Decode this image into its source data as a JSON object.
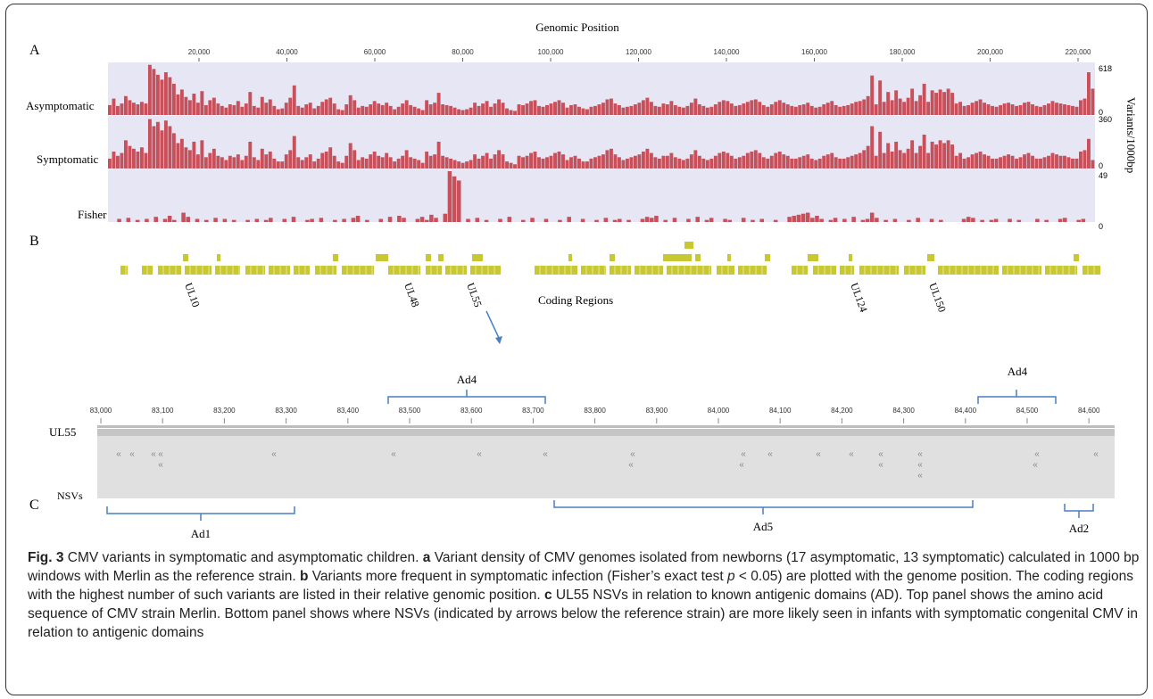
{
  "panels": {
    "A": "A",
    "B": "B",
    "C": "C"
  },
  "panelA": {
    "top_axis_label": "Genomic Position",
    "right_axis_label": "Variants/1000bp",
    "top_ticks": [
      "20,000",
      "40,000",
      "60,000",
      "80,000",
      "100,000",
      "120,000",
      "140,000",
      "160,000",
      "180,000",
      "200,000",
      "220,000"
    ],
    "tracks": [
      {
        "name": "Asymptomatic",
        "max_label": "618",
        "min_label": "0"
      },
      {
        "name": "Symptomatic",
        "max_label": "360",
        "min_label": "0"
      },
      {
        "name": "Fisher",
        "max_label": "49",
        "min_label": "0"
      }
    ]
  },
  "panelB": {
    "label": "Coding Regions",
    "genes": [
      "UL10",
      "UL48",
      "UL55",
      "UL124",
      "UL150"
    ]
  },
  "panelC": {
    "ticks": [
      "83,000",
      "83,100",
      "83,200",
      "83,300",
      "83,400",
      "83,500",
      "83,600",
      "83,700",
      "83,800",
      "83,900",
      "84,000",
      "84,100",
      "84,200",
      "84,300",
      "84,400",
      "84,500",
      "84,600"
    ],
    "row_labels": {
      "gene": "UL55",
      "nsv": "NSVs"
    },
    "domains_top": [
      "Ad4",
      "Ad4"
    ],
    "domains_bottom": [
      "Ad1",
      "Ad5",
      "Ad2"
    ]
  },
  "caption": {
    "fig_label": "Fig. 3",
    "title": " CMV variants in symptomatic and asymptomatic children. ",
    "a_label": "a",
    "a_text": " Variant density of CMV genomes isolated from newborns (17 asymptomatic, 13 symptomatic) calculated in 1000 bp windows with Merlin as the reference strain. ",
    "b_label": "b",
    "b_text1": " Variants more frequent in symptomatic infection (Fisher’s exact test ",
    "b_p": "p",
    "b_text2": " < 0.05) are plotted with the genome position. The coding regions with the highest number of such variants are listed in their relative genomic position. ",
    "c_label": "c",
    "c_text": " UL55 NSVs in relation to known antigenic domains (AD). Top panel shows the amino acid sequence of CMV strain Merlin. Bottom panel shows where NSVs (indicated by arrows below the reference strain) are more likely seen in infants with symptomatic congenital CMV in relation to antigenic domains"
  },
  "chart_data": [
    {
      "type": "bar",
      "series": [
        {
          "name": "Asymptomatic",
          "values": [
            120,
            200,
            110,
            140,
            230,
            180,
            150,
            130,
            160,
            140,
            610,
            560,
            490,
            430,
            520,
            460,
            380,
            250,
            310,
            220,
            180,
            260,
            150,
            290,
            120,
            180,
            210,
            140,
            110,
            90,
            130,
            120,
            170,
            100,
            140,
            280,
            110,
            90,
            220,
            150,
            190,
            110,
            70,
            80,
            150,
            210,
            360,
            110,
            90,
            130,
            150,
            80,
            110,
            160,
            190,
            210,
            140,
            70,
            60,
            130,
            240,
            180,
            90,
            110,
            100,
            130,
            170,
            140,
            120,
            150,
            110,
            70,
            100,
            140,
            180,
            120,
            100,
            80,
            60,
            180,
            130,
            150,
            270,
            130,
            120,
            110,
            90,
            70,
            60,
            70,
            90,
            150,
            110,
            140,
            170,
            100,
            140,
            190,
            150,
            80,
            60,
            50,
            130,
            120,
            140,
            170,
            180,
            110,
            100,
            120,
            140,
            160,
            180,
            150,
            90,
            120,
            130,
            100,
            80,
            70,
            100,
            110,
            130,
            150,
            190,
            200,
            140,
            120,
            90,
            100,
            110,
            130,
            150,
            180,
            210,
            160,
            110,
            100,
            140,
            130,
            170,
            120,
            100,
            90,
            110,
            150,
            200,
            130,
            110,
            90,
            100,
            130,
            160,
            180,
            170,
            140,
            110,
            120,
            140,
            160,
            180,
            190,
            160,
            120,
            100,
            130,
            160,
            180,
            150,
            130,
            110,
            100,
            120,
            130,
            150,
            110,
            90,
            100,
            130,
            150,
            170,
            120,
            100,
            110,
            120,
            140,
            160,
            170,
            190,
            230,
            480,
            130,
            420,
            160,
            280,
            180,
            300,
            200,
            160,
            210,
            320,
            170,
            240,
            380,
            160,
            300,
            270,
            310,
            280,
            320,
            270,
            140,
            160,
            110,
            120,
            150,
            170,
            190,
            150,
            130,
            110,
            100,
            120,
            140,
            150,
            130,
            110,
            120,
            150,
            160,
            130,
            110,
            100,
            120,
            140,
            170,
            150,
            140,
            130,
            120,
            110,
            100,
            180,
            200,
            520,
            320
          ]
        },
        {
          "name": "Symptomatic",
          "values": [
            70,
            120,
            90,
            110,
            200,
            160,
            140,
            120,
            150,
            110,
            350,
            300,
            330,
            270,
            340,
            300,
            250,
            180,
            210,
            150,
            130,
            190,
            100,
            200,
            80,
            110,
            140,
            90,
            80,
            60,
            90,
            80,
            100,
            60,
            90,
            190,
            80,
            60,
            140,
            100,
            120,
            70,
            50,
            50,
            100,
            130,
            230,
            80,
            60,
            80,
            100,
            50,
            70,
            110,
            120,
            150,
            90,
            50,
            40,
            90,
            180,
            130,
            60,
            80,
            70,
            100,
            120,
            90,
            80,
            110,
            80,
            50,
            70,
            90,
            130,
            80,
            70,
            60,
            40,
            120,
            90,
            100,
            190,
            90,
            80,
            70,
            60,
            50,
            40,
            50,
            60,
            100,
            70,
            90,
            110,
            70,
            100,
            130,
            100,
            50,
            40,
            30,
            90,
            80,
            90,
            110,
            120,
            80,
            70,
            80,
            90,
            110,
            120,
            100,
            60,
            80,
            90,
            70,
            50,
            50,
            70,
            80,
            90,
            100,
            130,
            140,
            100,
            80,
            60,
            70,
            80,
            90,
            100,
            120,
            140,
            110,
            80,
            70,
            90,
            90,
            110,
            80,
            70,
            60,
            70,
            100,
            130,
            90,
            70,
            60,
            70,
            90,
            110,
            120,
            110,
            90,
            70,
            80,
            90,
            110,
            120,
            130,
            110,
            80,
            70,
            90,
            110,
            120,
            100,
            90,
            70,
            70,
            80,
            90,
            100,
            70,
            60,
            70,
            90,
            100,
            110,
            80,
            70,
            70,
            80,
            90,
            100,
            110,
            130,
            160,
            300,
            90,
            260,
            110,
            180,
            120,
            190,
            130,
            110,
            140,
            200,
            110,
            160,
            240,
            110,
            190,
            170,
            200,
            180,
            200,
            170,
            90,
            110,
            70,
            80,
            100,
            110,
            120,
            100,
            90,
            70,
            70,
            80,
            90,
            100,
            90,
            70,
            80,
            100,
            110,
            90,
            70,
            70,
            80,
            90,
            110,
            100,
            90,
            90,
            80,
            70,
            70,
            120,
            130,
            210,
            60
          ]
        },
        {
          "name": "Fisher",
          "values": [
            0,
            0,
            3,
            0,
            4,
            0,
            2,
            0,
            3,
            0,
            5,
            0,
            3,
            6,
            2,
            0,
            9,
            5,
            0,
            3,
            0,
            2,
            0,
            4,
            0,
            3,
            0,
            2,
            0,
            0,
            2,
            0,
            3,
            0,
            2,
            4,
            0,
            0,
            3,
            0,
            5,
            0,
            0,
            2,
            3,
            0,
            4,
            0,
            0,
            2,
            0,
            3,
            0,
            4,
            6,
            0,
            2,
            0,
            0,
            3,
            0,
            5,
            0,
            6,
            4,
            0,
            0,
            3,
            5,
            2,
            7,
            4,
            0,
            8,
            49,
            44,
            40,
            0,
            3,
            0,
            4,
            0,
            2,
            0,
            0,
            3,
            0,
            5,
            0,
            0,
            2,
            0,
            4,
            0,
            0,
            3,
            0,
            0,
            2,
            0,
            5,
            0,
            0,
            3,
            0,
            0,
            2,
            0,
            4,
            0,
            2,
            3,
            0,
            2,
            0,
            0,
            3,
            5,
            4,
            6,
            0,
            2,
            0,
            4,
            0,
            0,
            3,
            0,
            5,
            0,
            2,
            4,
            0,
            0,
            3,
            2,
            0,
            0,
            4,
            0,
            2,
            0,
            3,
            0,
            0,
            2,
            0,
            0,
            5,
            6,
            7,
            8,
            9,
            4,
            6,
            3,
            0,
            2,
            4,
            0,
            3,
            0,
            5,
            0,
            2,
            3,
            9,
            4,
            0,
            2,
            0,
            3,
            0,
            0,
            2,
            0,
            4,
            0,
            0,
            3,
            0,
            2,
            0,
            0,
            0,
            0,
            3,
            5,
            4,
            0,
            2,
            0,
            2,
            3,
            0,
            0,
            3,
            0,
            2,
            0,
            0,
            0,
            3,
            0,
            2,
            0,
            0,
            3,
            4,
            0,
            0,
            2,
            3,
            0,
            0
          ]
        }
      ],
      "ylabel": "Variants/1000bp",
      "xlabel": "Genomic Position"
    }
  ]
}
